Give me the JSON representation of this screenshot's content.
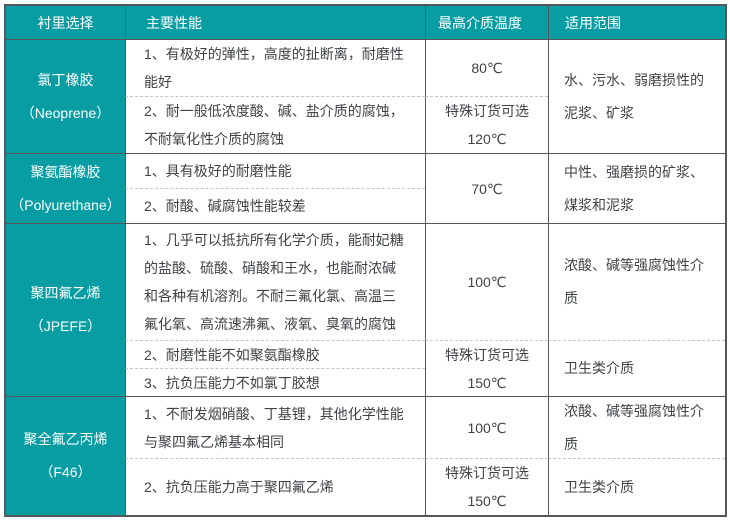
{
  "colors": {
    "accent_teal": "#089da3",
    "border_dark": "#54585a",
    "border_dashed": "#c4c4c4",
    "body_text": "#3f4347",
    "header_text": "#ffffff"
  },
  "table": {
    "header": {
      "lining": "衬里选择",
      "performance": "主要性能",
      "max_temp": "最高介质温度",
      "scope": "适用范围"
    },
    "groups": [
      {
        "material": "氯丁橡胶\n（Neoprene）",
        "rows": [
          {
            "performance": "1、有极好的弹性，高度的扯断离，耐磨性\n能好",
            "temp": "80℃"
          },
          {
            "performance": "2、耐一般低浓度酸、碱、盐介质的腐蚀，\n不耐氧化性介质的腐蚀",
            "temp": "特殊订货可选\n120℃"
          }
        ],
        "scope": "水、污水、弱磨损性的\n泥浆、矿浆"
      },
      {
        "material": "聚氨酯橡胶\n（Polyurethane）",
        "rows": [
          {
            "performance": "1、具有极好的耐磨性能"
          },
          {
            "performance": "2、耐酸、碱腐蚀性能较差"
          }
        ],
        "temp": "70℃",
        "scope": "中性、强磨损的矿浆、\n煤浆和泥浆"
      },
      {
        "material": "聚四氟乙烯\n（JPEFE）",
        "rows": [
          {
            "performance": "1、几乎可以抵抗所有化学介质，能耐妃糖\n的盐酸、硫酸、硝酸和王水，也能耐浓碱\n和各种有机溶剂。不耐三氟化氯、高温三\n氟化氧、高流速沸氟、液氧、臭氧的腐蚀",
            "temp": "100℃",
            "scope": "浓酸、碱等强腐蚀性介\n质"
          },
          {
            "performance": "2、耐磨性能不如聚氨酯橡胶"
          },
          {
            "performance": "3、抗负压能力不如氯丁胶想"
          }
        ],
        "temp_rows23": "特殊订货可选\n150℃",
        "scope_rows23": "卫生类介质"
      },
      {
        "material": "聚全氟乙丙烯\n（F46）",
        "rows": [
          {
            "performance": "1、不耐发烟硝酸、丁基锂，其他化学性能\n与聚四氟乙烯基本相同",
            "temp": "100℃",
            "scope": "浓酸、碱等强腐蚀性介\n质"
          },
          {
            "performance": "2、抗负压能力高于聚四氟乙烯",
            "temp": "特殊订货可选\n150℃",
            "scope": "卫生类介质"
          }
        ]
      }
    ]
  }
}
